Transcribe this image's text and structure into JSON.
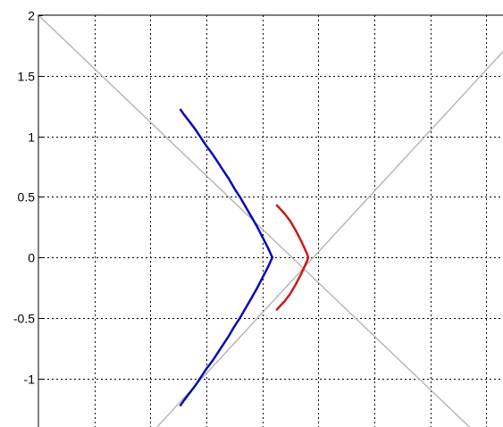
{
  "chart_data": {
    "type": "line",
    "title": "",
    "xlabel": "",
    "ylabel": "",
    "xlim": [
      -0.3,
      3.85
    ],
    "ylim": [
      -1.4,
      2.0
    ],
    "yticks": [
      {
        "value": 2,
        "label": "2"
      },
      {
        "value": 1.5,
        "label": "1.5"
      },
      {
        "value": 1,
        "label": "1"
      },
      {
        "value": 0.5,
        "label": "0.5"
      },
      {
        "value": 0,
        "label": "0"
      },
      {
        "value": -0.5,
        "label": "-0.5"
      },
      {
        "value": -1,
        "label": "-1"
      }
    ],
    "xgrid": [
      0.2,
      0.7,
      1.2,
      1.7,
      2.2,
      2.7,
      3.2,
      3.7
    ],
    "grid": true,
    "colors": {
      "blue_branch": "#0a0ab4",
      "red_branch": "#cc1a1a",
      "asymptotes": "#b4b4b4",
      "grid": "#000000"
    },
    "series": [
      {
        "color": "blue",
        "x": [
          0.97,
          1.0,
          1.05,
          1.1,
          1.15,
          1.2,
          1.25,
          1.3,
          1.35,
          1.4,
          1.45,
          1.5,
          1.55,
          1.6,
          1.65,
          1.7,
          1.75,
          1.78,
          1.79,
          1.78,
          1.75,
          1.7,
          1.65,
          1.6,
          1.55,
          1.5,
          1.45,
          1.4,
          1.35,
          1.3,
          1.25,
          1.2,
          1.15,
          1.1,
          1.05,
          1.0,
          0.97
        ],
        "y": [
          1.22,
          1.18,
          1.12,
          1.06,
          0.99,
          0.92,
          0.86,
          0.79,
          0.72,
          0.65,
          0.57,
          0.5,
          0.42,
          0.34,
          0.26,
          0.17,
          0.08,
          0.02,
          0.0,
          -0.02,
          -0.08,
          -0.17,
          -0.26,
          -0.34,
          -0.42,
          -0.5,
          -0.57,
          -0.65,
          -0.72,
          -0.79,
          -0.86,
          -0.92,
          -0.99,
          -1.06,
          -1.12,
          -1.18,
          -1.22
        ]
      },
      {
        "color": "red",
        "x": [
          1.83,
          1.86,
          1.9,
          1.95,
          2.0,
          2.05,
          2.08,
          2.1,
          2.11,
          2.1,
          2.08,
          2.05,
          2.0,
          1.95,
          1.9,
          1.86,
          1.83
        ],
        "y": [
          0.43,
          0.4,
          0.36,
          0.3,
          0.22,
          0.13,
          0.07,
          0.03,
          0.0,
          -0.03,
          -0.07,
          -0.13,
          -0.22,
          -0.3,
          -0.36,
          -0.4,
          -0.43
        ]
      },
      {
        "color": "gray",
        "x": [
          -0.3,
          3.55
        ],
        "y": [
          2.0,
          -1.4
        ]
      },
      {
        "color": "gray",
        "x": [
          0.76,
          4.15
        ],
        "y": [
          -1.4,
          2.0
        ]
      }
    ]
  }
}
